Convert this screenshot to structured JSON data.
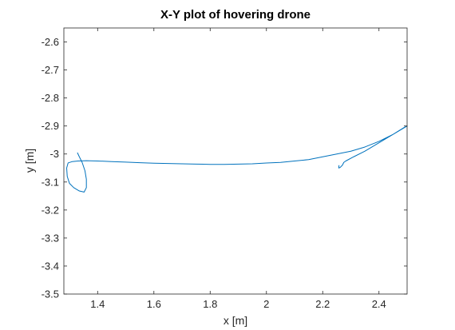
{
  "chart_data": {
    "type": "line",
    "title": "X-Y plot of hovering drone",
    "xlabel": "x [m]",
    "ylabel": "y [m]",
    "xlim": [
      1.28,
      2.5
    ],
    "ylim": [
      -3.5,
      -2.55
    ],
    "xticks": [
      1.4,
      1.6,
      1.8,
      2,
      2.2,
      2.4
    ],
    "xtick_labels": [
      "1.4",
      "1.6",
      "1.8",
      "2",
      "2.2",
      "2.4"
    ],
    "yticks": [
      -2.6,
      -2.7,
      -2.8,
      -2.9,
      -3,
      -3.1,
      -3.2,
      -3.3,
      -3.4,
      -3.5
    ],
    "ytick_labels": [
      "-2.6",
      "-2.7",
      "-2.8",
      "-2.9",
      "-3",
      "-3.1",
      "-3.2",
      "-3.3",
      "-3.4",
      "-3.5"
    ],
    "grid": false,
    "box": true,
    "series": [
      {
        "color": "#0072BD",
        "x": [
          2.258,
          2.257,
          2.262,
          2.27,
          2.275,
          2.282,
          2.31,
          2.35,
          2.4,
          2.45,
          2.5,
          2.49,
          2.45,
          2.4,
          2.35,
          2.3,
          2.25,
          2.2,
          2.15,
          2.1,
          2.05,
          2.0,
          1.95,
          1.9,
          1.85,
          1.8,
          1.75,
          1.7,
          1.65,
          1.6,
          1.55,
          1.5,
          1.45,
          1.4,
          1.36,
          1.33,
          1.31,
          1.295,
          1.29,
          1.292,
          1.3,
          1.315,
          1.335,
          1.352,
          1.36,
          1.36,
          1.355,
          1.345,
          1.335,
          1.328
        ],
        "y": [
          -3.04,
          -3.05,
          -3.048,
          -3.04,
          -3.03,
          -3.025,
          -3.01,
          -2.99,
          -2.96,
          -2.93,
          -2.9,
          -2.905,
          -2.93,
          -2.955,
          -2.975,
          -2.99,
          -3.0,
          -3.01,
          -3.02,
          -3.025,
          -3.03,
          -3.032,
          -3.035,
          -3.036,
          -3.037,
          -3.037,
          -3.036,
          -3.035,
          -3.034,
          -3.033,
          -3.031,
          -3.029,
          -3.027,
          -3.025,
          -3.024,
          -3.025,
          -3.027,
          -3.032,
          -3.05,
          -3.08,
          -3.105,
          -3.12,
          -3.132,
          -3.136,
          -3.12,
          -3.09,
          -3.06,
          -3.03,
          -3.01,
          -2.995
        ]
      }
    ]
  }
}
